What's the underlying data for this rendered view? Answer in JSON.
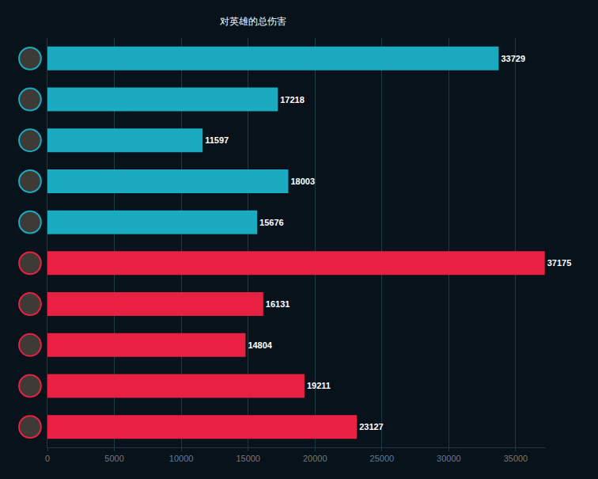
{
  "chart_data": {
    "type": "bar",
    "title": "对英雄的总伤害",
    "orientation": "horizontal",
    "categories": [
      null,
      null,
      null,
      null,
      null,
      null,
      null,
      null,
      null,
      null
    ],
    "values": [
      33729,
      17218,
      11597,
      18003,
      15676,
      37175,
      16131,
      14804,
      19211,
      23127
    ],
    "colors": [
      "#1aabc0",
      "#1aabc0",
      "#1aabc0",
      "#1aabc0",
      "#1aabc0",
      "#e82142",
      "#e82142",
      "#e82142",
      "#e82142",
      "#e82142"
    ],
    "xlim": [
      0,
      37250
    ],
    "xticks": [
      0,
      5000,
      10000,
      15000,
      20000,
      25000,
      30000,
      35000
    ],
    "grid": true,
    "data_labels": true,
    "tick_labels": "x"
  }
}
